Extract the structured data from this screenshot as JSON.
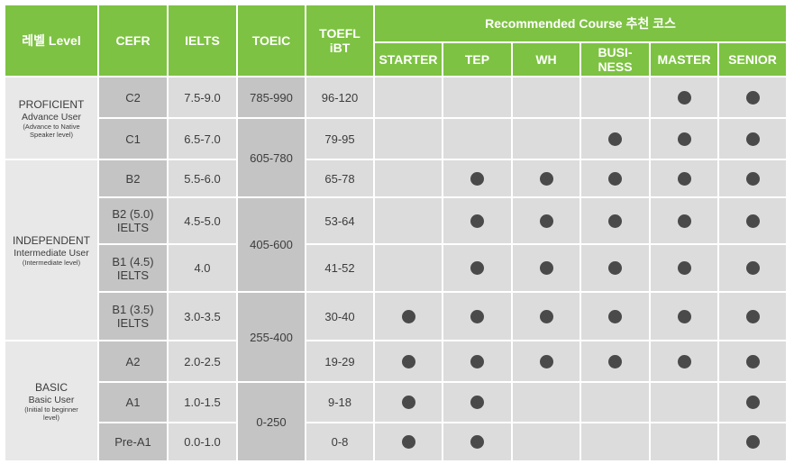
{
  "headers": {
    "level": "레벨 Level",
    "cefr": "CEFR",
    "ielts": "IELTS",
    "toeic": "TOEIC",
    "toefl_line1": "TOEFL",
    "toefl_line2": "iBT",
    "recommended": "Recommended Course 추천 코스",
    "courses": [
      {
        "line1": "STARTER",
        "line2": ""
      },
      {
        "line1": "TEP",
        "line2": ""
      },
      {
        "line1": "WH",
        "line2": ""
      },
      {
        "line1": "BUSI-",
        "line2": "NESS"
      },
      {
        "line1": "MASTER",
        "line2": ""
      },
      {
        "line1": "SENIOR",
        "line2": ""
      }
    ]
  },
  "levels": [
    {
      "name": "PROFICIENT",
      "sub": "Advance User",
      "note1": "(Advance to Native",
      "note2": "Speaker level)"
    },
    {
      "name": "INDEPENDENT",
      "sub": "Intermediate User",
      "note1": "(Intermediate level)",
      "note2": ""
    },
    {
      "name": "BASIC",
      "sub": "Basic User",
      "note1": "(Initial to beginner",
      "note2": "level)"
    }
  ],
  "toeic": [
    "785-990",
    "605-780",
    "405-600",
    "255-400",
    "0-250"
  ],
  "rows": [
    {
      "cefr1": "C2",
      "cefr2": "",
      "ielts": "7.5-9.0",
      "toefl": "96-120"
    },
    {
      "cefr1": "C1",
      "cefr2": "",
      "ielts": "6.5-7.0",
      "toefl": "79-95"
    },
    {
      "cefr1": "B2",
      "cefr2": "",
      "ielts": "5.5-6.0",
      "toefl": "65-78"
    },
    {
      "cefr1": "B2 (5.0)",
      "cefr2": "IELTS",
      "ielts": "4.5-5.0",
      "toefl": "53-64"
    },
    {
      "cefr1": "B1 (4.5)",
      "cefr2": "IELTS",
      "ielts": "4.0",
      "toefl": "41-52"
    },
    {
      "cefr1": "B1 (3.5)",
      "cefr2": "IELTS",
      "ielts": "3.0-3.5",
      "toefl": "30-40"
    },
    {
      "cefr1": "A2",
      "cefr2": "",
      "ielts": "2.0-2.5",
      "toefl": "19-29"
    },
    {
      "cefr1": "A1",
      "cefr2": "",
      "ielts": "1.0-1.5",
      "toefl": "9-18"
    },
    {
      "cefr1": "Pre-A1",
      "cefr2": "",
      "ielts": "0.0-1.0",
      "toefl": "0-8"
    }
  ],
  "recommended": [
    [
      0,
      0,
      0,
      0,
      1,
      1
    ],
    [
      0,
      0,
      0,
      1,
      1,
      1
    ],
    [
      0,
      1,
      1,
      1,
      1,
      1
    ],
    [
      0,
      1,
      1,
      1,
      1,
      1
    ],
    [
      0,
      1,
      1,
      1,
      1,
      1
    ],
    [
      1,
      1,
      1,
      1,
      1,
      1
    ],
    [
      1,
      1,
      1,
      1,
      1,
      1
    ],
    [
      1,
      1,
      0,
      0,
      0,
      1
    ],
    [
      1,
      1,
      0,
      0,
      0,
      1
    ]
  ]
}
